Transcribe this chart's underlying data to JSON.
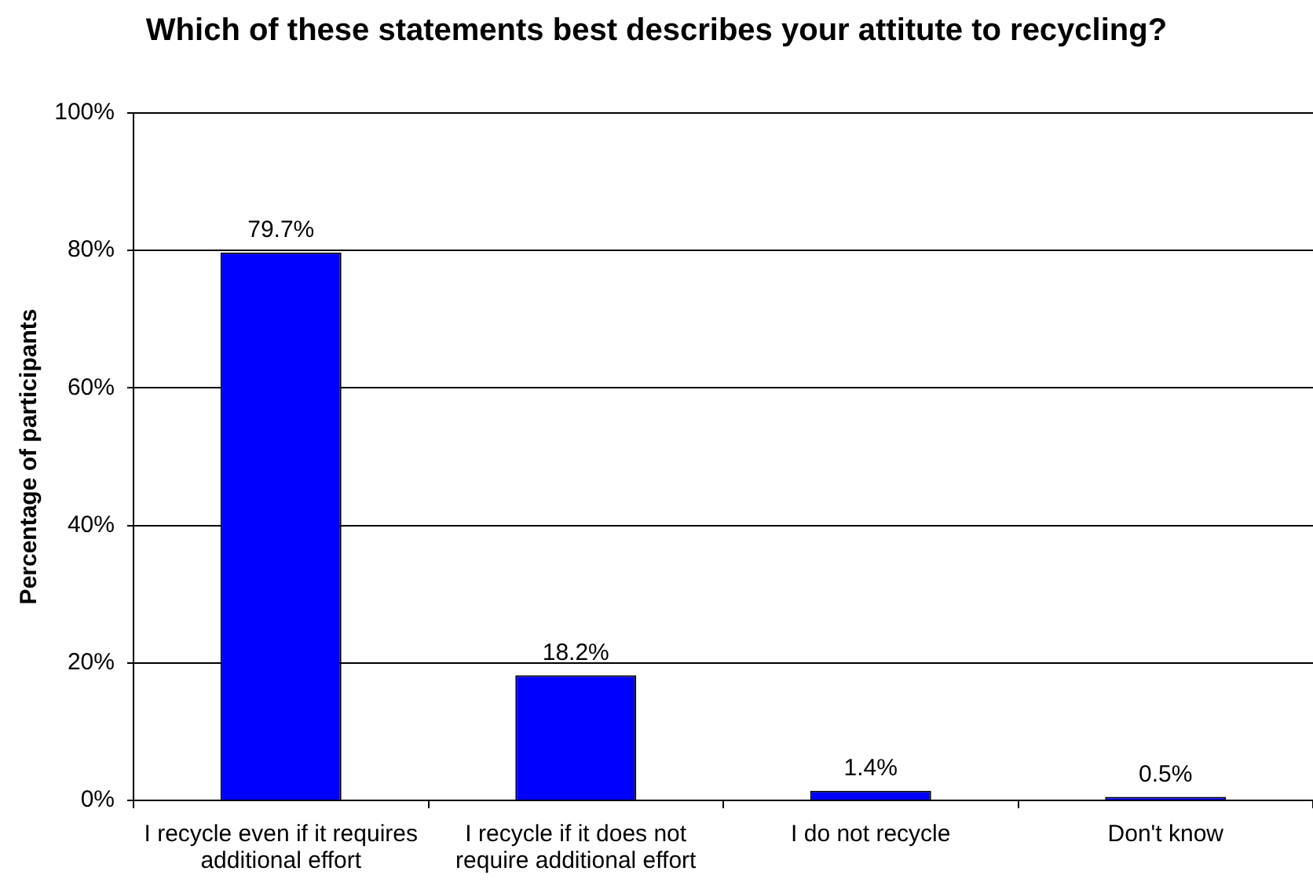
{
  "chart_data": {
    "type": "bar",
    "title": "Which of these statements best describes your attitute to recycling?",
    "ylabel": "Percentage of participants",
    "categories": [
      "I recycle even if it requires additional effort",
      "I recycle if it does not require additional effort",
      "I do not recycle",
      "Don't know"
    ],
    "values": [
      79.7,
      18.2,
      1.4,
      0.5
    ],
    "color": "#0000ff",
    "value_labels": [
      "79.7%",
      "18.2%",
      "1.4%",
      "0.5%"
    ],
    "ylim": [
      0,
      100
    ],
    "yticks": [
      {
        "value": 0,
        "label": "0%"
      },
      {
        "value": 20,
        "label": "20%"
      },
      {
        "value": 40,
        "label": "40%"
      },
      {
        "value": 60,
        "label": "60%"
      },
      {
        "value": 80,
        "label": "80%"
      },
      {
        "value": 100,
        "label": "100%"
      }
    ],
    "grid": "y",
    "legend": false
  }
}
